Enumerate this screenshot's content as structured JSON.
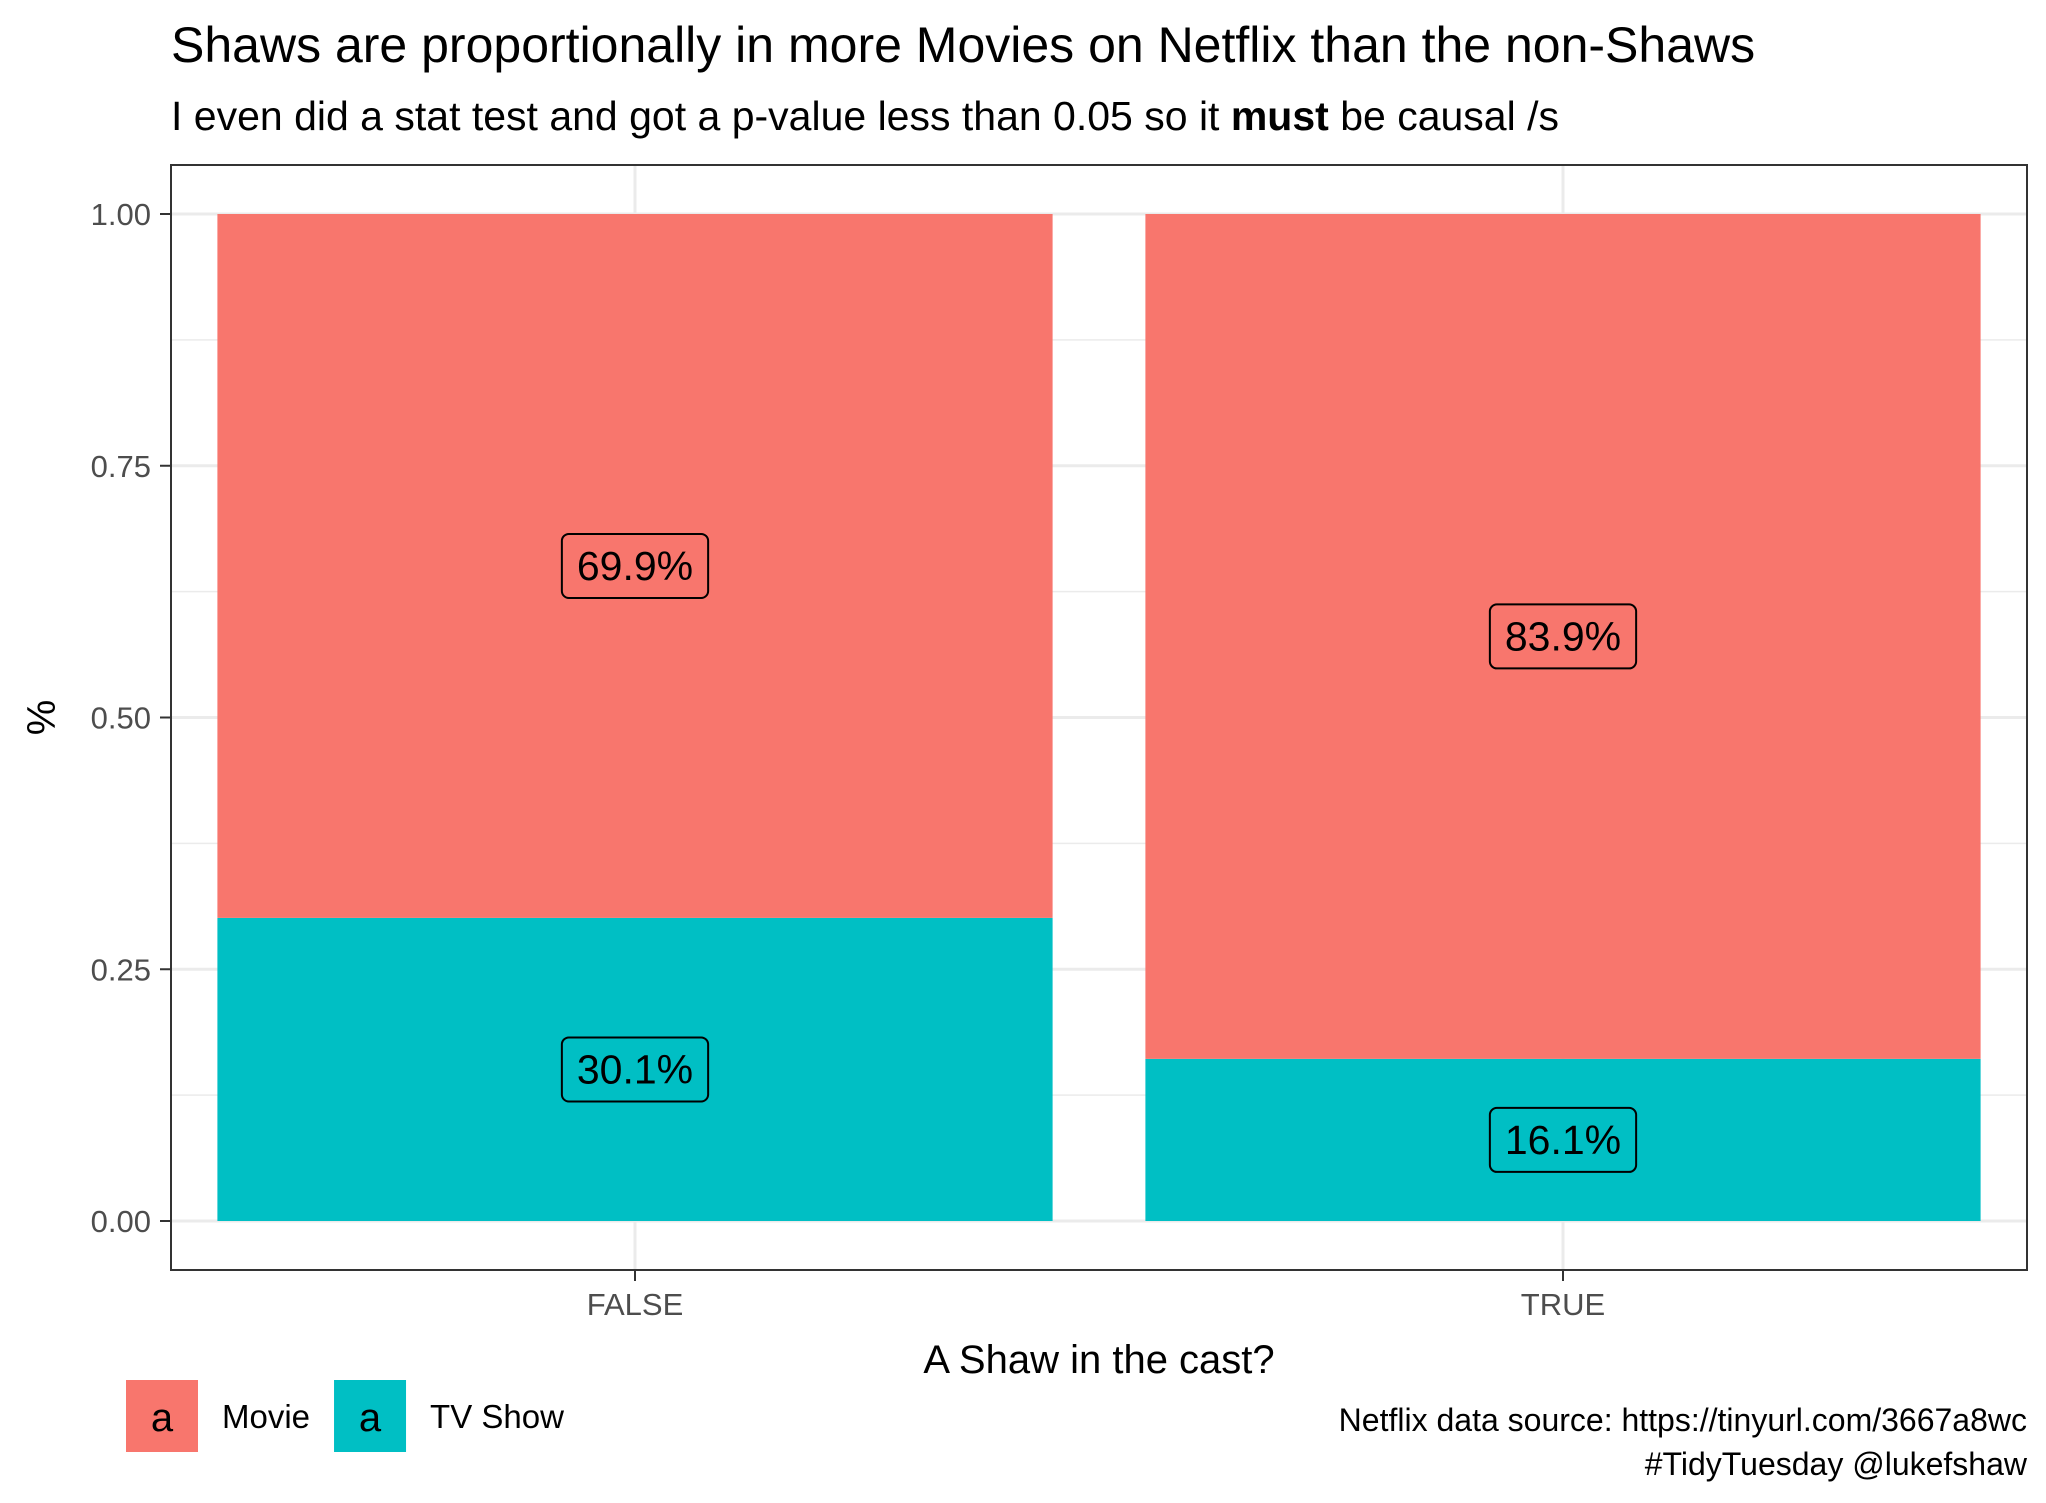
{
  "chart_data": {
    "type": "bar",
    "stacked": true,
    "title": "Shaws are proportionally in more Movies on Netflix than the non-Shaws",
    "subtitle": {
      "before": "I even did a stat test and got a p-value less than 0.05 so it ",
      "bold": "must",
      "after": " be causal /s"
    },
    "xlabel": "A Shaw in the cast?",
    "ylabel": "%",
    "ylim": [
      0,
      1
    ],
    "y_ticks": [
      "0.00",
      "0.25",
      "0.50",
      "0.75",
      "1.00"
    ],
    "y_tick_values": [
      0,
      0.25,
      0.5,
      0.75,
      1.0
    ],
    "categories": [
      "FALSE",
      "TRUE"
    ],
    "series": [
      {
        "name": "TV Show",
        "color": "#00BFC4",
        "values": [
          0.301,
          0.161
        ],
        "labels": [
          "30.1%",
          "16.1%"
        ]
      },
      {
        "name": "Movie",
        "color": "#F8766D",
        "values": [
          0.699,
          0.839
        ],
        "labels": [
          "69.9%",
          "83.9%"
        ]
      }
    ],
    "legend": {
      "position": "bottom-left",
      "key_glyph": "a",
      "entries": [
        {
          "name": "Movie",
          "color": "#F8766D"
        },
        {
          "name": "TV Show",
          "color": "#00BFC4"
        }
      ]
    },
    "caption": [
      "Netflix data source: https://tinyurl.com/3667a8wc",
      "#TidyTuesday @lukefshaw"
    ],
    "grid": true
  }
}
